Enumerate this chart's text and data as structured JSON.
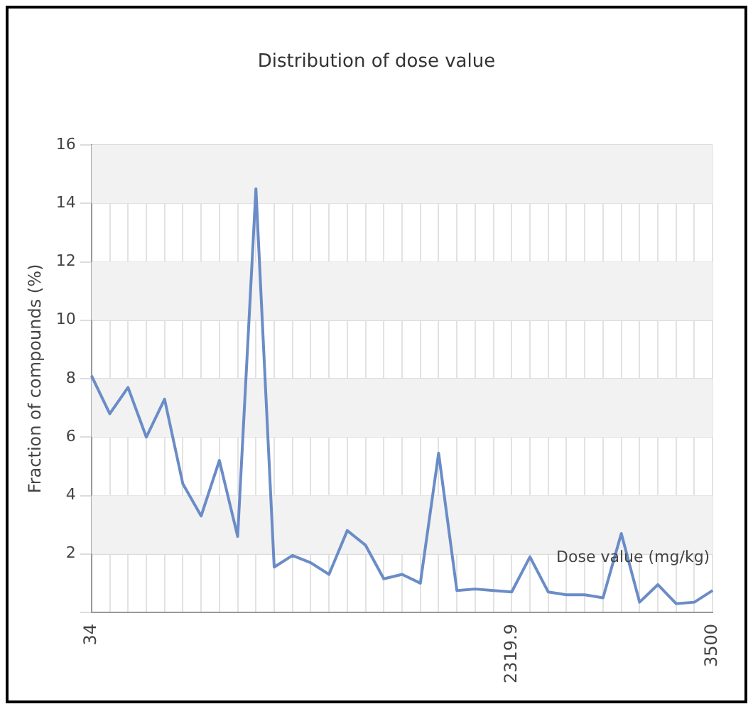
{
  "chart_data": {
    "type": "line",
    "title": "Distribution of dose value",
    "xlabel": "Dose value (mg/kg)",
    "ylabel": "Fraction of compounds (%)",
    "categories": [
      "34",
      null,
      null,
      null,
      null,
      null,
      null,
      null,
      null,
      null,
      null,
      null,
      null,
      null,
      null,
      null,
      null,
      null,
      null,
      null,
      null,
      null,
      null,
      "2319.9",
      null,
      null,
      null,
      null,
      null,
      null,
      null,
      null,
      null,
      null,
      "3500"
    ],
    "series": [
      {
        "color": "#6a8cc7",
        "values": [
          8.1,
          6.8,
          7.7,
          6.0,
          7.3,
          4.4,
          3.3,
          5.2,
          2.6,
          14.5,
          1.55,
          1.95,
          1.7,
          1.3,
          2.8,
          2.3,
          1.15,
          1.3,
          1.0,
          5.45,
          0.75,
          0.8,
          0.75,
          0.7,
          1.9,
          0.7,
          0.6,
          0.6,
          0.5,
          2.7,
          0.35,
          0.95,
          0.3,
          0.35,
          0.75
        ]
      }
    ],
    "ylim": [
      0,
      16
    ],
    "yticks": [
      {
        "value": 0,
        "label": null
      },
      2,
      4,
      6,
      8,
      10,
      12,
      14,
      16
    ],
    "grid": true,
    "legend": false,
    "marker": "none",
    "line_style": "solid"
  }
}
